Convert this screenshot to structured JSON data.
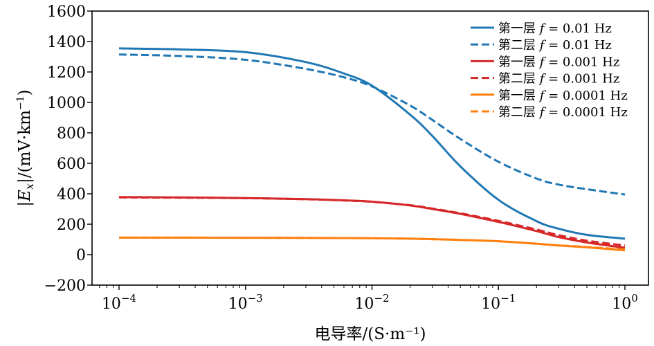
{
  "chart_data": {
    "type": "line",
    "xscale": "log",
    "xlim": [
      0.0001,
      1
    ],
    "ylim": [
      -200,
      1600
    ],
    "yticks": [
      -200,
      0,
      200,
      400,
      600,
      800,
      1000,
      1200,
      1400,
      1600
    ],
    "xtick_labels": [
      {
        "value": 0.0001,
        "base": "10",
        "exp": "−4"
      },
      {
        "value": 0.001,
        "base": "10",
        "exp": "−3"
      },
      {
        "value": 0.01,
        "base": "10",
        "exp": "−2"
      },
      {
        "value": 0.1,
        "base": "10",
        "exp": "−1"
      },
      {
        "value": 1,
        "base": "10",
        "exp": "0"
      }
    ],
    "xlabel": "电导率/(S·m⁻¹)",
    "ylabel": "|Ex|/(mV·km⁻¹)",
    "legend_position": "top-right",
    "grid": false,
    "x": [
      0.0001,
      0.0003,
      0.001,
      0.003,
      0.006,
      0.01,
      0.02,
      0.03,
      0.05,
      0.1,
      0.2,
      0.3,
      0.5,
      1
    ],
    "series": [
      {
        "name": "第一层 f = 0.01 Hz",
        "color": "#1f77b4",
        "dash": "solid",
        "values": [
          1355,
          1348,
          1330,
          1265,
          1190,
          1110,
          920,
          780,
          580,
          360,
          220,
          170,
          130,
          105
        ]
      },
      {
        "name": "第二层 f = 0.01 Hz",
        "color": "#1f77b4",
        "dash": "dashed",
        "values": [
          1315,
          1305,
          1280,
          1220,
          1165,
          1105,
          980,
          885,
          760,
          610,
          500,
          460,
          430,
          395
        ]
      },
      {
        "name": "第一层 f = 0.001 Hz",
        "color": "#d62728",
        "dash": "solid",
        "values": [
          378,
          376,
          372,
          365,
          357,
          348,
          323,
          300,
          268,
          215,
          155,
          115,
          80,
          45
        ]
      },
      {
        "name": "第二层 f = 0.001 Hz",
        "color": "#d62728",
        "dash": "dashed",
        "values": [
          376,
          374,
          371,
          364,
          356,
          347,
          325,
          303,
          272,
          222,
          165,
          128,
          92,
          60
        ]
      },
      {
        "name": "第一层 f = 0.0001 Hz",
        "color": "#ff7f0e",
        "dash": "solid",
        "values": [
          112,
          112,
          111,
          110,
          109,
          108,
          105,
          102,
          97,
          88,
          72,
          60,
          48,
          28
        ]
      },
      {
        "name": "第二层 f = 0.0001 Hz",
        "color": "#ff7f0e",
        "dash": "dashed",
        "values": [
          112,
          112,
          111,
          110,
          109,
          108,
          105,
          102,
          97,
          88,
          72,
          61,
          50,
          34
        ]
      }
    ]
  }
}
